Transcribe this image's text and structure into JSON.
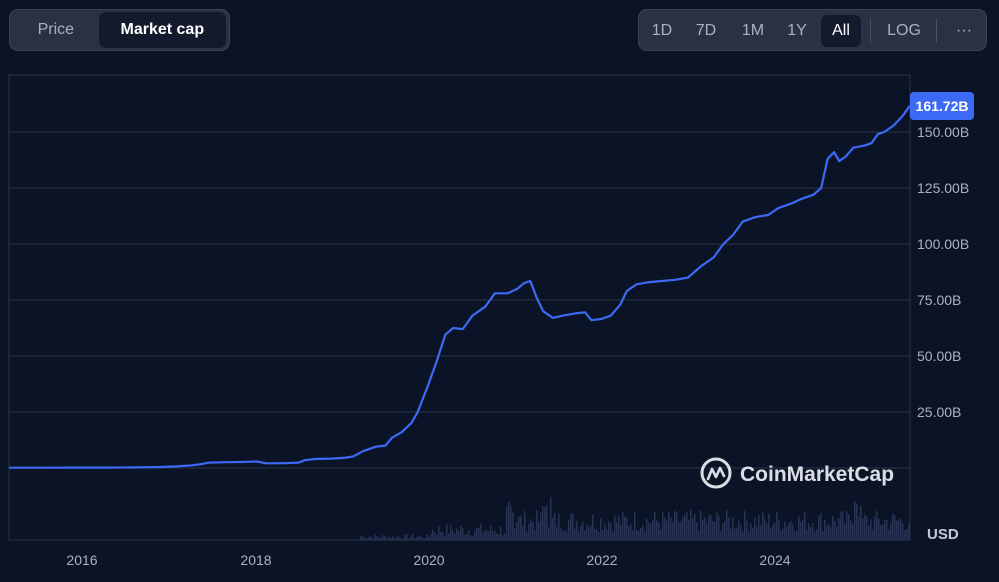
{
  "toggle": {
    "price_label": "Price",
    "market_cap_label": "Market cap"
  },
  "range": {
    "options": [
      "1D",
      "7D",
      "1M",
      "1Y",
      "All"
    ],
    "active": "All",
    "log_label": "LOG",
    "more_label": "···"
  },
  "watermark": {
    "text": "CoinMarketCap"
  },
  "colors": {
    "line": "#3d6af5",
    "badge": "#3d6af5",
    "grid": "#2a3347",
    "volume": "#283253"
  },
  "chart_data": {
    "type": "line",
    "series": [
      {
        "values": [
          [
            2015.0,
            0.15
          ],
          [
            2015.5,
            0.15
          ],
          [
            2016.0,
            0.17
          ],
          [
            2016.5,
            0.2
          ],
          [
            2017.0,
            0.25
          ],
          [
            2017.3,
            0.4
          ],
          [
            2017.6,
            0.7
          ],
          [
            2017.85,
            1.2
          ],
          [
            2018.0,
            1.8
          ],
          [
            2018.1,
            2.4
          ],
          [
            2018.4,
            2.6
          ],
          [
            2018.6,
            2.7
          ],
          [
            2018.85,
            2.9
          ],
          [
            2019.0,
            2.1
          ],
          [
            2019.3,
            2.2
          ],
          [
            2019.5,
            2.4
          ],
          [
            2019.6,
            3.5
          ],
          [
            2019.75,
            4.0
          ],
          [
            2020.0,
            4.2
          ],
          [
            2020.2,
            4.5
          ],
          [
            2020.35,
            5.2
          ],
          [
            2020.5,
            7.5
          ],
          [
            2020.7,
            9.5
          ],
          [
            2020.85,
            10.0
          ],
          [
            2020.95,
            13.5
          ],
          [
            2021.1,
            16.0
          ],
          [
            2021.25,
            20.0
          ],
          [
            2021.35,
            25.0
          ],
          [
            2021.5,
            36.0
          ],
          [
            2021.65,
            48.0
          ],
          [
            2021.78,
            59.5
          ],
          [
            2021.9,
            62.5
          ],
          [
            2022.05,
            62.0
          ],
          [
            2022.2,
            68.0
          ],
          [
            2022.4,
            72.0
          ],
          [
            2022.55,
            78.0
          ],
          [
            2022.75,
            78.0
          ],
          [
            2022.9,
            80.0
          ],
          [
            2023.0,
            82.5
          ],
          [
            2023.1,
            83.5
          ],
          [
            2023.2,
            76.0
          ],
          [
            2023.3,
            70.0
          ],
          [
            2023.45,
            67.0
          ],
          [
            2023.6,
            68.0
          ],
          [
            2023.8,
            69.0
          ],
          [
            2023.95,
            69.5
          ],
          [
            2024.05,
            66.0
          ],
          [
            2024.2,
            66.5
          ],
          [
            2024.35,
            68.0
          ],
          [
            2024.5,
            73.0
          ],
          [
            2024.6,
            79.0
          ],
          [
            2024.75,
            82.0
          ],
          [
            2024.95,
            83.0
          ],
          [
            2025.15,
            83.5
          ],
          [
            2025.35,
            84.0
          ],
          [
            2025.55,
            85.0
          ],
          [
            2025.75,
            90.0
          ],
          [
            2025.95,
            94.0
          ],
          [
            2026.1,
            100.0
          ],
          [
            2026.25,
            104.0
          ],
          [
            2026.4,
            110.0
          ],
          [
            2026.6,
            112.0
          ],
          [
            2026.8,
            113.0
          ],
          [
            2026.95,
            116.0
          ],
          [
            2027.15,
            118.0
          ],
          [
            2027.3,
            120.0
          ],
          [
            2027.5,
            122.0
          ],
          [
            2027.62,
            125.0
          ],
          [
            2027.72,
            138.0
          ],
          [
            2027.82,
            141.0
          ],
          [
            2027.9,
            137.0
          ],
          [
            2028.0,
            139.0
          ],
          [
            2028.12,
            143.0
          ],
          [
            2028.3,
            144.0
          ],
          [
            2028.4,
            145.0
          ],
          [
            2028.5,
            149.0
          ],
          [
            2028.6,
            150.0
          ],
          [
            2028.75,
            153.0
          ],
          [
            2028.88,
            157.0
          ],
          [
            2029.0,
            161.72
          ]
        ]
      }
    ],
    "x_ticks": [
      "2016",
      "2018",
      "2020",
      "2022",
      "2024"
    ],
    "y_ticks": [
      "25.00B",
      "50.00B",
      "75.00B",
      "100.00B",
      "125.00B",
      "150.00B"
    ],
    "ylabel": "USD",
    "last_value_label": "161.72B",
    "ylim": [
      0,
      175
    ],
    "grid": true,
    "volume_bars": true
  }
}
